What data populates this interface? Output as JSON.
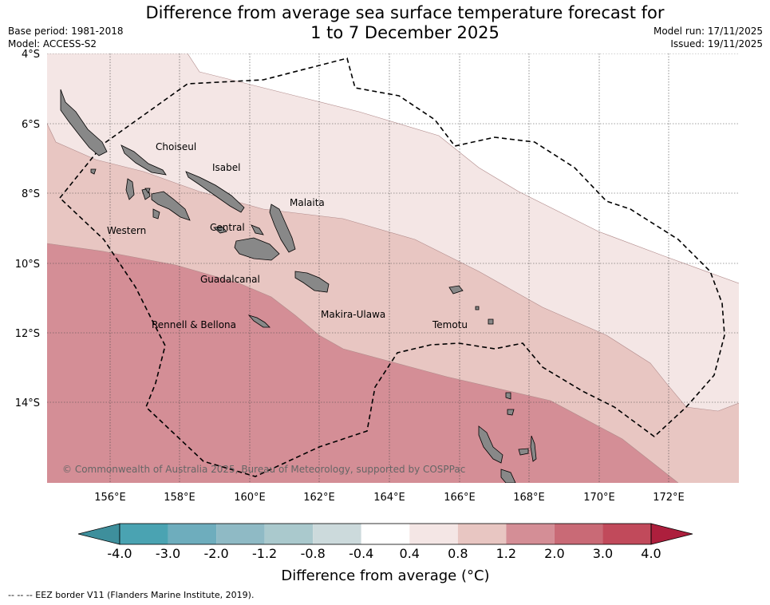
{
  "header": {
    "title_line1": "Difference from average sea surface temperature forecast for",
    "title_line2": "1 to 7 December 2025",
    "base_period": "Base period: 1981-2018",
    "model": "Model: ACCESS-S2",
    "model_run": "Model run: 17/11/2025",
    "issued": "Issued: 19/11/2025"
  },
  "map": {
    "lat_ticks": [
      "4°S",
      "6°S",
      "8°S",
      "10°S",
      "12°S",
      "14°S"
    ],
    "lon_ticks": [
      "156°E",
      "158°E",
      "160°E",
      "162°E",
      "164°E",
      "166°E",
      "168°E",
      "170°E",
      "172°E"
    ],
    "provinces": [
      "Choiseul",
      "Isabel",
      "Malaita",
      "Western",
      "Central",
      "Guadalcanal",
      "Makira-Ulawa",
      "Rennell & Bellona",
      "Temotu"
    ],
    "copyright": "© Commonwealth of Australia 2025, Bureau of Meteorology, supported by COSPPac"
  },
  "colorbar": {
    "ticks": [
      "-4.0",
      "-3.0",
      "-2.0",
      "-1.2",
      "-0.8",
      "-0.4",
      "0.4",
      "0.8",
      "1.2",
      "2.0",
      "3.0",
      "4.0"
    ],
    "colors": [
      "#3e8f9c",
      "#4aa3b2",
      "#6eadbd",
      "#8fbac5",
      "#aac9cd",
      "#ccdadc",
      "#ffffff",
      "#f4e6e5",
      "#e8c6c2",
      "#d48e96",
      "#c96a76",
      "#c14a5b",
      "#ad1f3d"
    ],
    "label": "Difference from average (°C)"
  },
  "footer": {
    "eez_note": "--  --  -- EEZ border V11 (Flanders Marine Institute, 2019)."
  }
}
